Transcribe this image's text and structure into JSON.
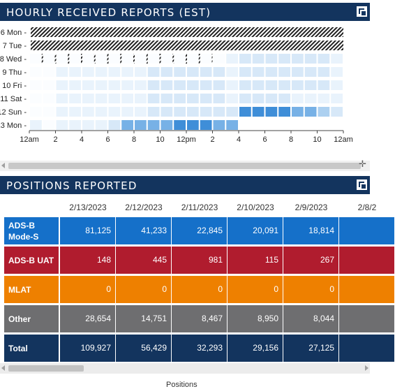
{
  "hourly_panel": {
    "title": "HOURLY RECEIVED REPORTS (EST)",
    "days": [
      "6 Mon",
      "7 Tue",
      "8 Wed",
      "9 Thu",
      "10 Fri",
      "11 Sat",
      "12 Sun",
      "13 Mon"
    ],
    "hour_ticks": [
      "12am",
      "2",
      "4",
      "6",
      "8",
      "10",
      "12pm",
      "2",
      "4",
      "6",
      "8",
      "10",
      "12am"
    ],
    "no_data_hours": [
      24,
      24,
      14,
      0,
      0,
      0,
      0,
      0
    ],
    "levels": [
      [],
      [],
      [
        0,
        0,
        0,
        0,
        0,
        0,
        0,
        0,
        0,
        0,
        0,
        0,
        0,
        0,
        0,
        1,
        2,
        2,
        2,
        2,
        2,
        2,
        2,
        1
      ],
      [
        0,
        0,
        1,
        1,
        1,
        1,
        1,
        1,
        1,
        2,
        2,
        2,
        2,
        2,
        2,
        1,
        2,
        2,
        2,
        2,
        2,
        2,
        2,
        1
      ],
      [
        0,
        0,
        1,
        1,
        1,
        1,
        1,
        1,
        1,
        2,
        2,
        2,
        2,
        2,
        2,
        1,
        2,
        2,
        2,
        2,
        2,
        2,
        2,
        1
      ],
      [
        0,
        0,
        1,
        1,
        1,
        1,
        1,
        1,
        1,
        2,
        2,
        2,
        2,
        2,
        2,
        1,
        2,
        2,
        2,
        2,
        1,
        1,
        1,
        1
      ],
      [
        0,
        0,
        1,
        1,
        1,
        1,
        1,
        1,
        1,
        2,
        2,
        2,
        2,
        2,
        2,
        2,
        5,
        5,
        5,
        5,
        4,
        4,
        3,
        2
      ],
      [
        1,
        0,
        1,
        1,
        1,
        1,
        2,
        4,
        4,
        4,
        4,
        5,
        5,
        5,
        4,
        4,
        -1,
        -1,
        -1,
        -1,
        -1,
        -1,
        -1,
        -1
      ]
    ],
    "palette": [
      "#fbfdff",
      "#e9f3fc",
      "#d7e8f8",
      "#acd0f0",
      "#77b1e6",
      "#3f8ed8",
      "#2179c8"
    ]
  },
  "positions_panel": {
    "title": "POSITIONS REPORTED",
    "dates": [
      "2/13/2023",
      "2/12/2023",
      "2/11/2023",
      "2/10/2023",
      "2/9/2023",
      "2/8/2"
    ],
    "rows": [
      {
        "label": "ADS-B Mode-S",
        "label_lines": [
          "ADS-B",
          "Mode-S"
        ],
        "color": "#1570c9",
        "values": [
          "81,125",
          "41,233",
          "22,845",
          "20,091",
          "18,814",
          ""
        ]
      },
      {
        "label": "ADS-B UAT",
        "label_lines": [
          "ADS-B UAT"
        ],
        "color": "#b01c2e",
        "values": [
          "148",
          "445",
          "981",
          "115",
          "267",
          ""
        ]
      },
      {
        "label": "MLAT",
        "label_lines": [
          "MLAT"
        ],
        "color": "#ee8000",
        "values": [
          "0",
          "0",
          "0",
          "0",
          "0",
          ""
        ]
      },
      {
        "label": "Other",
        "label_lines": [
          "Other"
        ],
        "color": "#6e6e70",
        "values": [
          "28,654",
          "14,751",
          "8,467",
          "8,950",
          "8,044",
          ""
        ]
      },
      {
        "label": "Total",
        "label_lines": [
          "Total"
        ],
        "color": "#13345e",
        "values": [
          "109,927",
          "56,429",
          "32,293",
          "29,156",
          "27,125",
          ""
        ]
      }
    ]
  },
  "footer": {
    "label": "Positions"
  }
}
